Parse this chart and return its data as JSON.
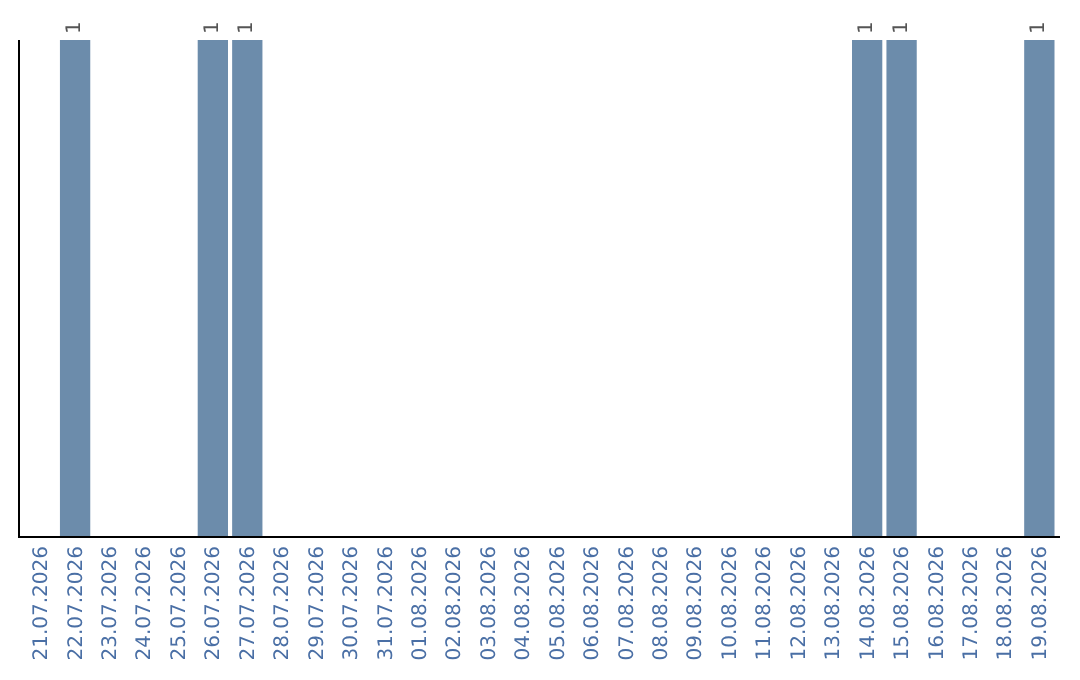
{
  "chart_data": {
    "type": "bar",
    "categories": [
      "21.07.2026",
      "22.07.2026",
      "23.07.2026",
      "24.07.2026",
      "25.07.2026",
      "26.07.2026",
      "27.07.2026",
      "28.07.2026",
      "29.07.2026",
      "30.07.2026",
      "31.07.2026",
      "01.08.2026",
      "02.08.2026",
      "03.08.2026",
      "04.08.2026",
      "05.08.2026",
      "06.08.2026",
      "07.08.2026",
      "08.08.2026",
      "09.08.2026",
      "10.08.2026",
      "11.08.2026",
      "12.08.2026",
      "13.08.2026",
      "14.08.2026",
      "15.08.2026",
      "16.08.2026",
      "17.08.2026",
      "18.08.2026",
      "19.08.2026"
    ],
    "values": [
      0,
      1,
      0,
      0,
      0,
      1,
      1,
      0,
      0,
      0,
      0,
      0,
      0,
      0,
      0,
      0,
      0,
      0,
      0,
      0,
      0,
      0,
      0,
      0,
      1,
      1,
      0,
      0,
      0,
      1
    ],
    "value_labels": [
      null,
      "1",
      null,
      null,
      null,
      "1",
      "1",
      null,
      null,
      null,
      null,
      null,
      null,
      null,
      null,
      null,
      null,
      null,
      null,
      null,
      null,
      null,
      null,
      null,
      "1",
      "1",
      null,
      null,
      null,
      "1"
    ],
    "color": "#6c8cab",
    "ylim": [
      0,
      1
    ]
  }
}
